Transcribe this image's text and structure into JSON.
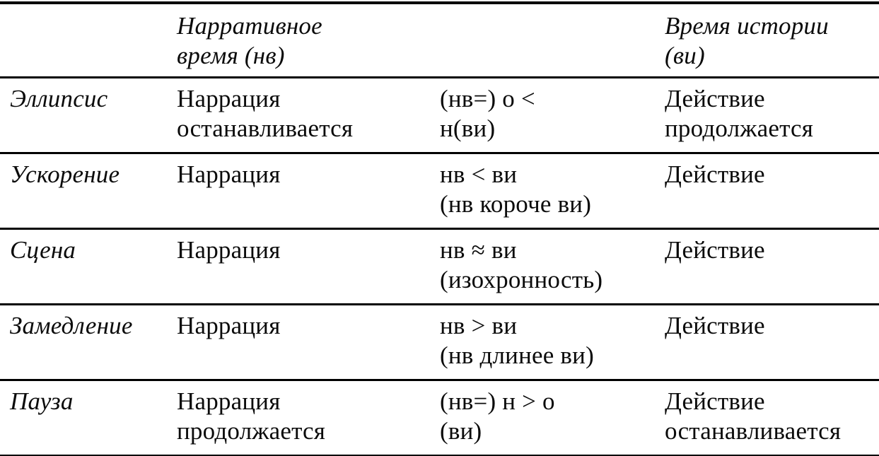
{
  "table": {
    "headers": {
      "term": "",
      "narrative_time": "Нарративное\nвремя (нв)",
      "formula": "",
      "story_time": "Время истории\n(ви)"
    },
    "rows": [
      {
        "term": "Эллипсис",
        "narration": "Наррация\nостанавливается",
        "formula": "(нв=) о <\nн(ви)",
        "action": "Действие\nпродолжается"
      },
      {
        "term": "Ускорение",
        "narration": "Наррация",
        "formula": "нв < ви\n(нв короче ви)",
        "action": "Действие"
      },
      {
        "term": "Сцена",
        "narration": "Наррация",
        "formula": "нв ≈ ви\n(изохронность)",
        "action": "Действие"
      },
      {
        "term": "Замедление",
        "narration": "Наррация",
        "formula": "нв > ви\n(нв длинее ви)",
        "action": "Действие"
      },
      {
        "term": "Пауза",
        "narration": "Наррация\nпродолжается",
        "formula": "(нв=) н > о\n(ви)",
        "action": "Действие\nостанавливается"
      }
    ]
  },
  "colors": {
    "text": "#0b0b0b",
    "rule": "#000000",
    "background": "#ffffff"
  }
}
